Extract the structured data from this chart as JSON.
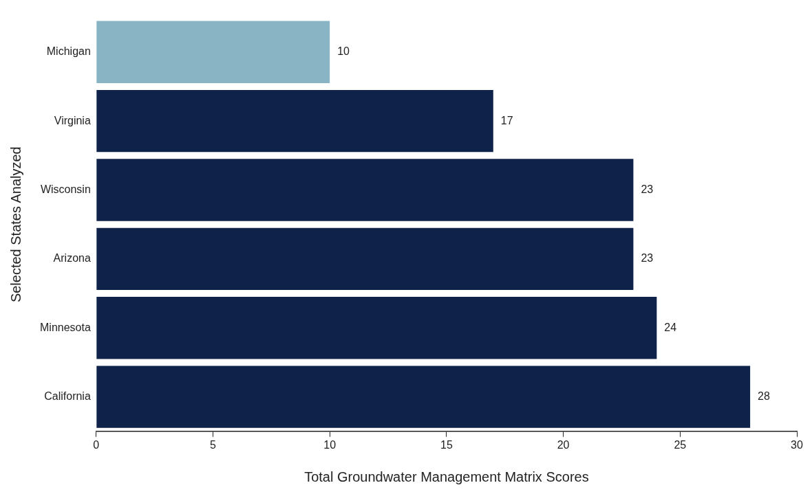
{
  "chart_data": {
    "type": "bar",
    "orientation": "horizontal",
    "xlabel": "Total Groundwater Management Matrix Scores",
    "ylabel": "Selected States Analyzed",
    "categories": [
      "Michigan",
      "Virginia",
      "Wisconsin",
      "Arizona",
      "Minnesota",
      "California"
    ],
    "values": [
      10,
      17,
      23,
      23,
      24,
      28
    ],
    "colors": [
      "#88b4c4",
      "#0f2249",
      "#0f2249",
      "#0f2249",
      "#0f2249",
      "#0f2249"
    ],
    "xlim": [
      0,
      30
    ],
    "xticks": [
      0,
      5,
      10,
      15,
      20,
      25,
      30
    ],
    "grid": false,
    "legend": false,
    "data_labels": true
  }
}
